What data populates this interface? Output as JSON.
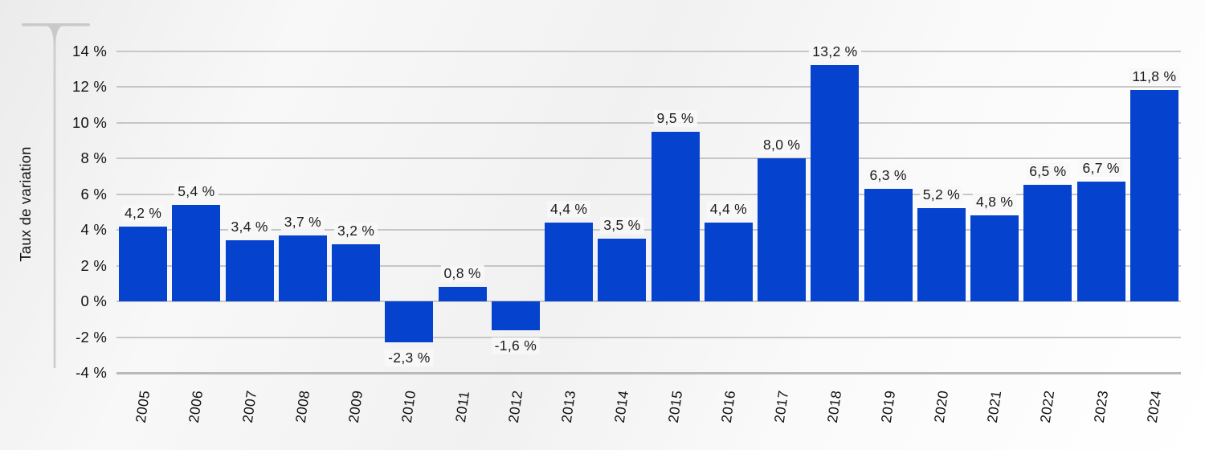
{
  "chart_data": {
    "type": "bar",
    "title": "",
    "xlabel": "",
    "ylabel": "Taux de variation",
    "categories": [
      "2005",
      "2006",
      "2007",
      "2008",
      "2009",
      "2010",
      "2011",
      "2012",
      "2013",
      "2014",
      "2015",
      "2016",
      "2017",
      "2018",
      "2019",
      "2020",
      "2021",
      "2022",
      "2023",
      "2024"
    ],
    "values": [
      4.2,
      5.4,
      3.4,
      3.7,
      3.2,
      -2.3,
      0.8,
      -1.6,
      4.4,
      3.5,
      9.5,
      4.4,
      8.0,
      13.2,
      6.3,
      5.2,
      4.8,
      6.5,
      6.7,
      11.8
    ],
    "value_labels": [
      "4,2 %",
      "5,4 %",
      "3,4 %",
      "3,7 %",
      "3,2 %",
      "-2,3 %",
      "0,8 %",
      "-1,6 %",
      "4,4 %",
      "3,5 %",
      "9,5 %",
      "4,4 %",
      "8,0 %",
      "13,2 %",
      "6,3 %",
      "5,2 %",
      "4,8 %",
      "6,5 %",
      "6,7 %",
      "11,8 %"
    ],
    "ylim": [
      -4,
      14
    ],
    "ytick_step": 2,
    "ytick_labels": [
      "14 %",
      "12 %",
      "10 %",
      "8 %",
      "6 %",
      "4 %",
      "2 %",
      "0 %",
      "-2 %",
      "-4 %"
    ],
    "ytick_values": [
      14,
      12,
      10,
      8,
      6,
      4,
      2,
      0,
      -2,
      -4
    ],
    "grid": true,
    "legend_position": "none",
    "colors": {
      "bar": "#0542cd",
      "gridline": "#c6c6c6",
      "axis_floor": "#b9b9b9",
      "axis_decoration": "#c9c9c9",
      "text": "#1a1a1a"
    }
  }
}
